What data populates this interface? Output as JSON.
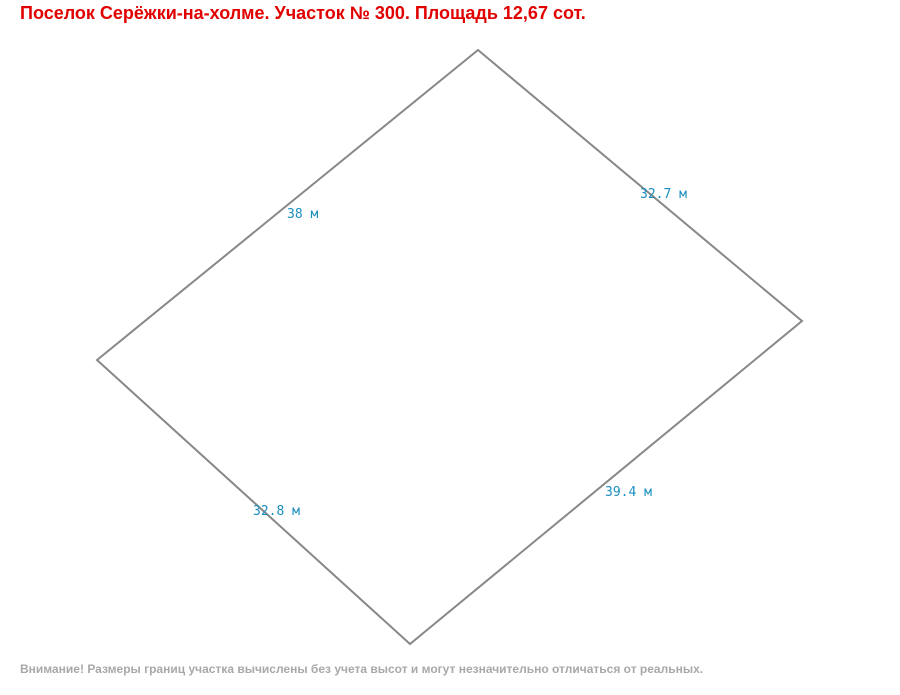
{
  "header": {
    "title": "Поселок Серёжки-на-холме. Участок № 300. Площадь 12,67 сот."
  },
  "edges": [
    {
      "label": "38 м"
    },
    {
      "label": "32.7 м"
    },
    {
      "label": "39.4 м"
    },
    {
      "label": "32.8 м"
    }
  ],
  "footer": {
    "note": "Внимание! Размеры границ участка вычислены без учета высот и могут незначительно отличаться от реальных."
  }
}
